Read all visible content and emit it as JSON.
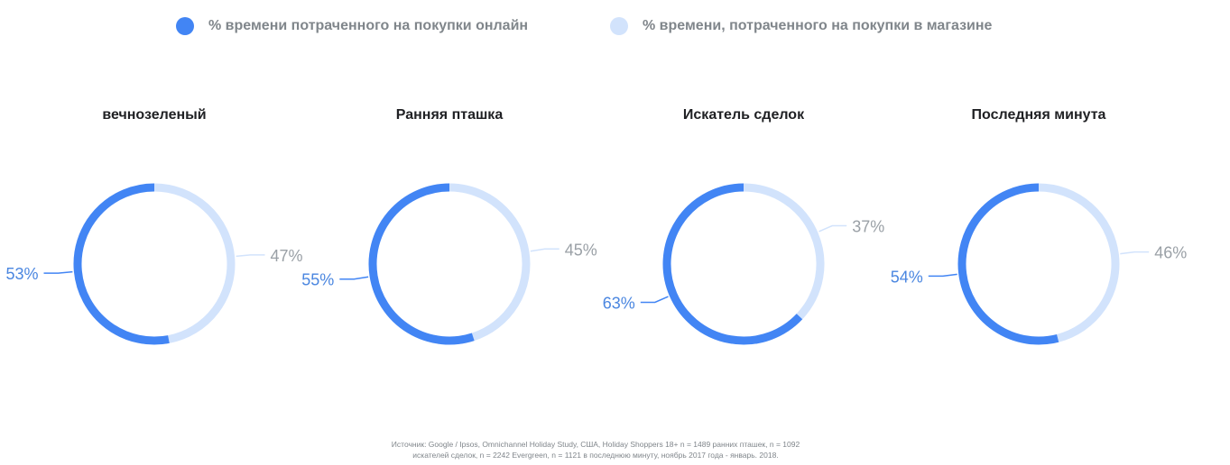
{
  "colors": {
    "online": "#4285f4",
    "store": "#d2e3fc",
    "online_text": "#4a86e0",
    "store_text": "#9aa0a6"
  },
  "legend": [
    {
      "label": "% времени потраченного на покупки онлайн",
      "color": "#4285f4"
    },
    {
      "label": "% времени, потраченного на покупки в магазине",
      "color": "#d2e3fc"
    }
  ],
  "chart_data": [
    {
      "type": "pie",
      "title": "вечнозеленый",
      "slices": [
        {
          "value": 53,
          "label": "53%"
        },
        {
          "value": 47,
          "label": "47%"
        }
      ]
    },
    {
      "type": "pie",
      "title": "Ранняя пташка",
      "slices": [
        {
          "value": 55,
          "label": "55%"
        },
        {
          "value": 45,
          "label": "45%"
        }
      ]
    },
    {
      "type": "pie",
      "title": "Искатель сделок",
      "slices": [
        {
          "value": 63,
          "label": "63%"
        },
        {
          "value": 37,
          "label": "37%"
        }
      ]
    },
    {
      "type": "pie",
      "title": "Последняя минута",
      "slices": [
        {
          "value": 54,
          "label": "54%"
        },
        {
          "value": 46,
          "label": "46%"
        }
      ]
    }
  ],
  "footer": {
    "line1": "Источник: Google / Ipsos, Omnichannel Holiday Study, США, Holiday Shoppers 18+ n = 1489 ранних пташек, n = 1092",
    "line2": "искателей сделок, n = 2242 Evergreen, n = 1121 в последнюю минуту, ноябрь 2017 года - январь. 2018."
  }
}
